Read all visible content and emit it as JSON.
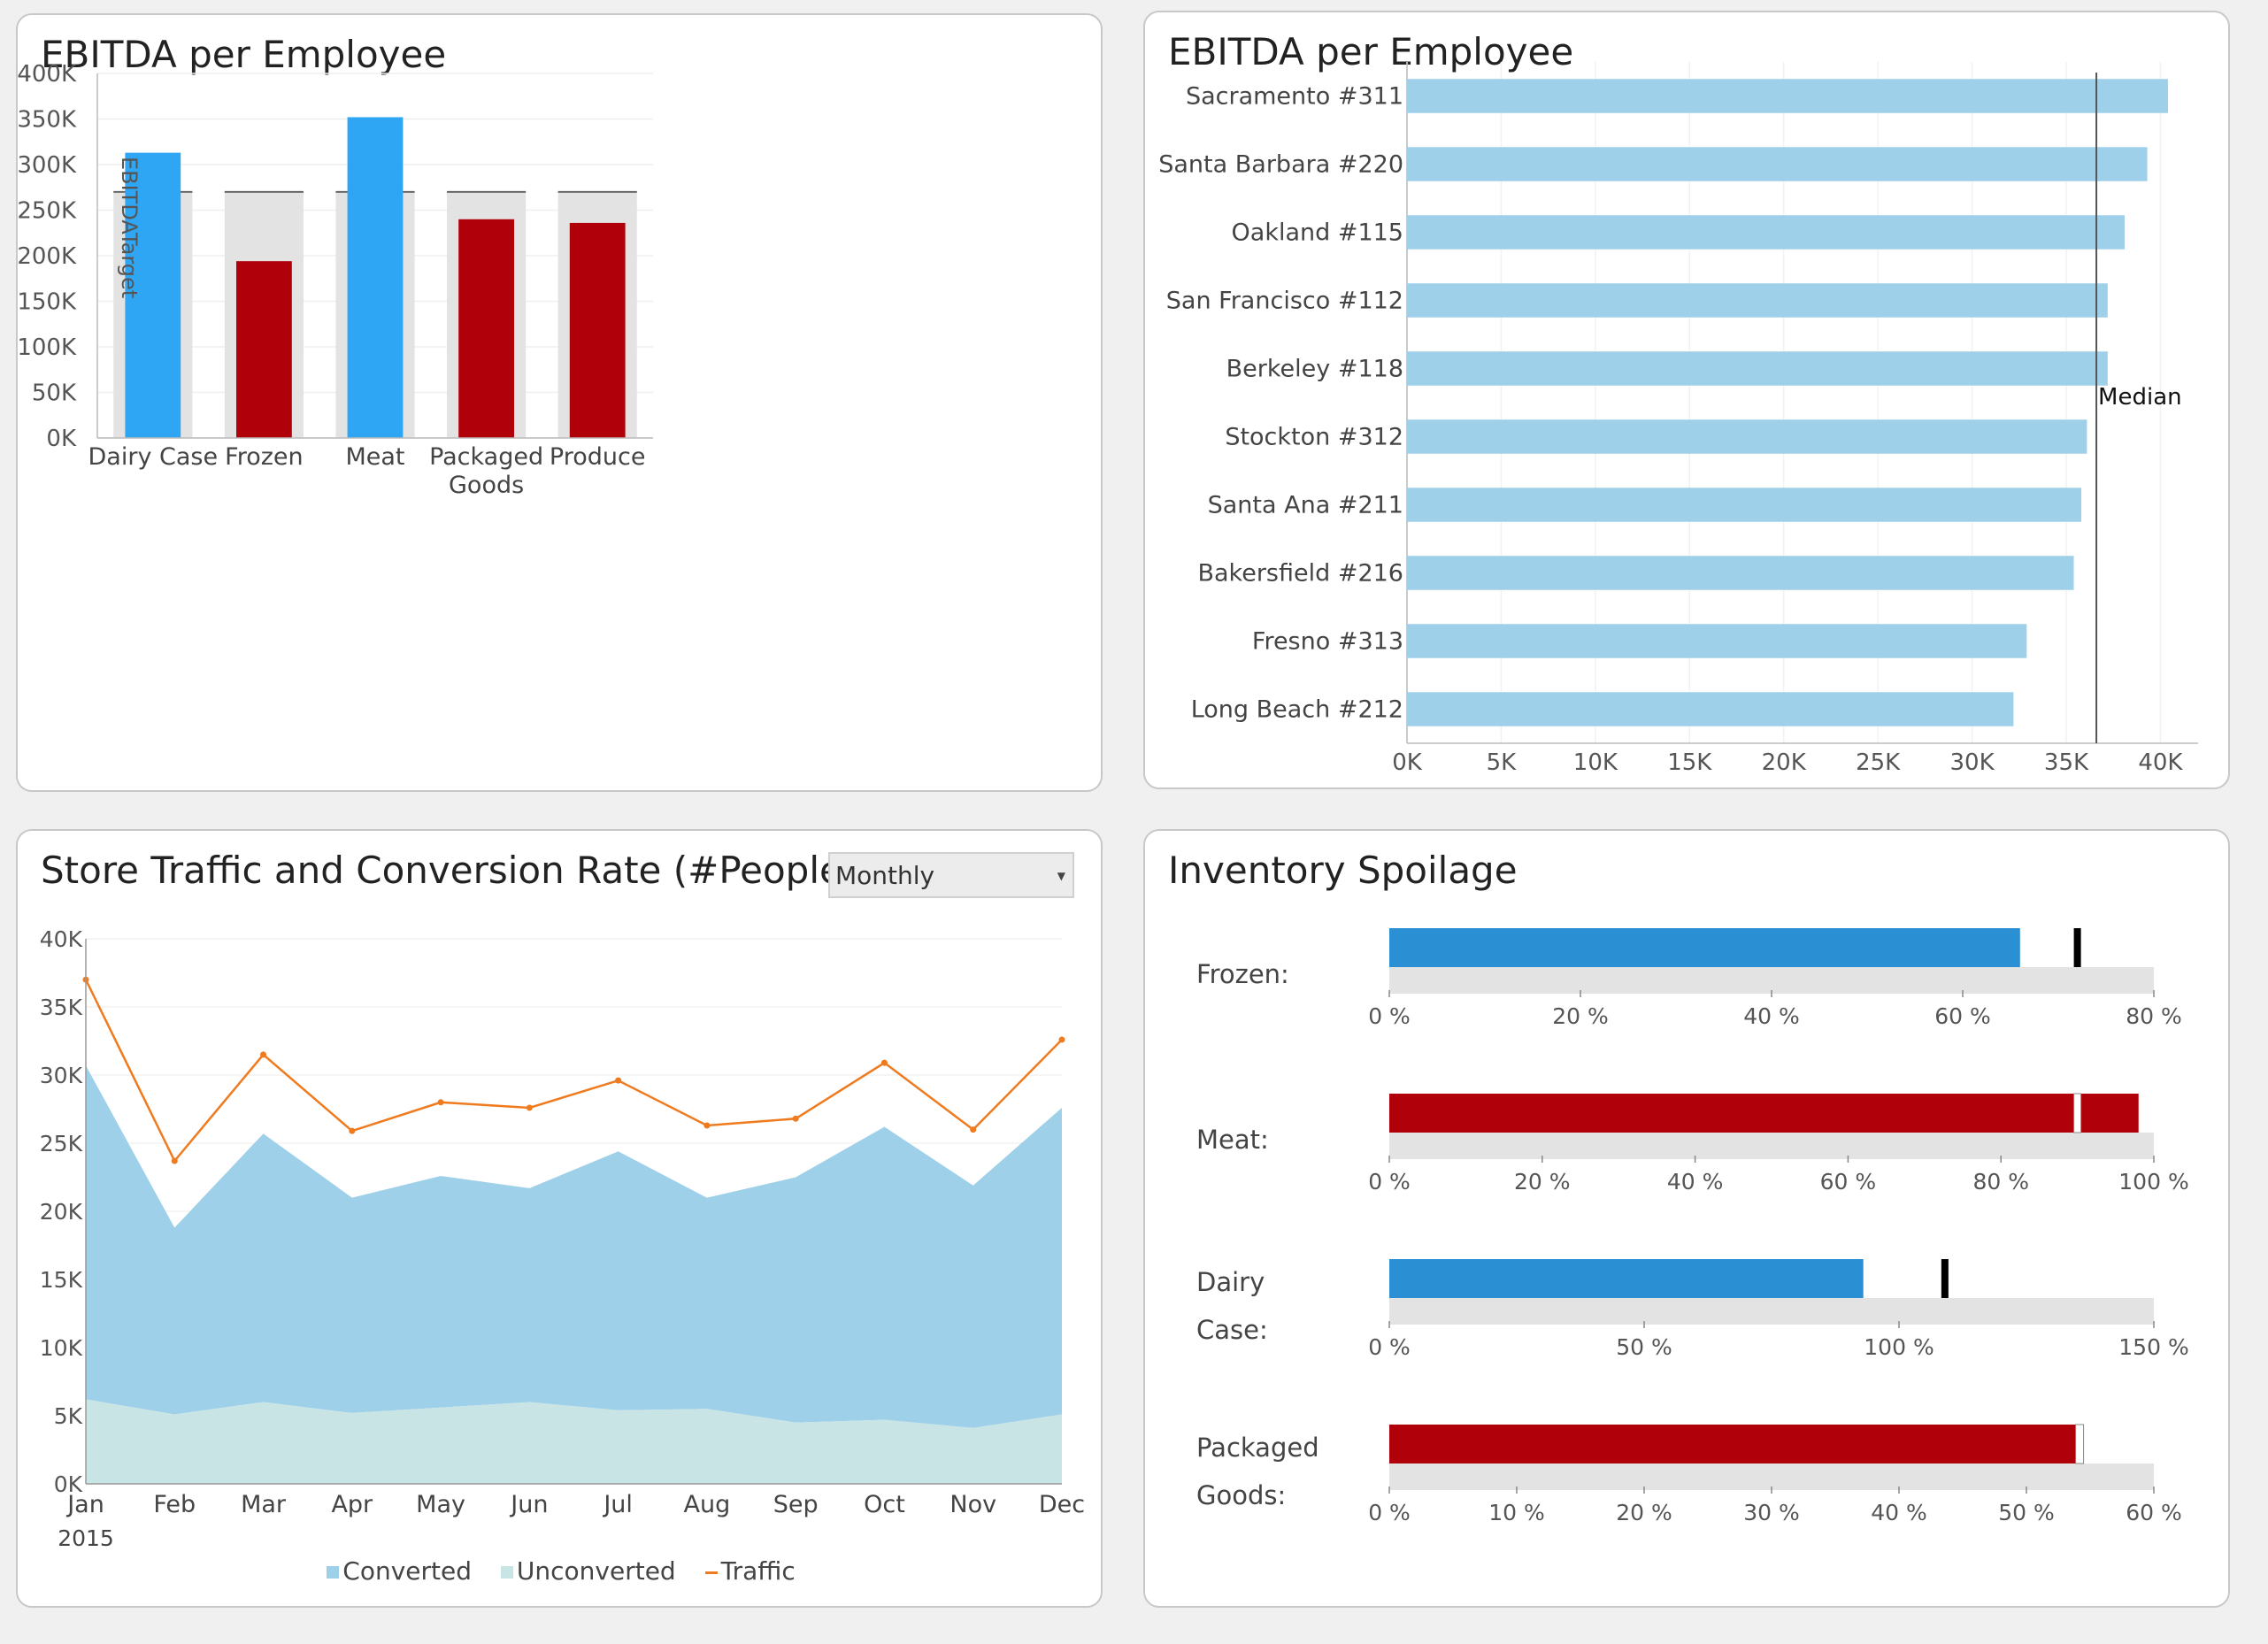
{
  "panels": {
    "ebitda_category": {
      "title": "EBITDA per Employee"
    },
    "ebitda_store": {
      "title": "EBITDA per Employee"
    },
    "traffic": {
      "title": "Store Traffic and Conversion Rate (#People)",
      "period_select": "Monthly"
    },
    "spoilage": {
      "title": "Inventory Spoilage"
    }
  },
  "colors": {
    "above_target": "#2ea6f3",
    "below_target": "#b0000a",
    "target_band": "#e3e3e3",
    "store_bar": "#9fd0ea",
    "converted": "#9fd0ea",
    "unconverted": "#c8e4e4",
    "traffic": "#f07a1e",
    "spoilage_good": "#2b8fd3",
    "spoilage_bad": "#b0000a"
  },
  "chart_data": [
    {
      "type": "bar",
      "title": "EBITDA per Employee",
      "categories": [
        "Dairy Case",
        "Frozen",
        "Meat",
        "Packaged Goods",
        "Produce"
      ],
      "values": [
        313000,
        194000,
        352000,
        240000,
        236000
      ],
      "target": 270000,
      "target_label": "EBITDATarget",
      "ylim": [
        0,
        400000
      ],
      "yticks": [
        "0K",
        "50K",
        "100K",
        "150K",
        "200K",
        "250K",
        "300K",
        "350K",
        "400K"
      ],
      "grid": true
    },
    {
      "type": "bar",
      "orientation": "horizontal",
      "title": "EBITDA per Employee",
      "categories": [
        "Sacramento #311",
        "Santa Barbara #220",
        "Oakland #115",
        "San Francisco #112",
        "Berkeley #118",
        "Stockton #312",
        "Santa Ana #211",
        "Bakersfield #216",
        "Fresno #313",
        "Long Beach #212"
      ],
      "values": [
        40400,
        39300,
        38100,
        37200,
        37200,
        36100,
        35800,
        35400,
        32900,
        32200
      ],
      "median": 36600,
      "median_label": "Median",
      "xlim": [
        0,
        42000
      ],
      "xticks": [
        "0K",
        "5K",
        "10K",
        "15K",
        "20K",
        "25K",
        "30K",
        "35K",
        "40K"
      ],
      "grid": true
    },
    {
      "type": "area",
      "title": "Store Traffic and Conversion Rate (#People)",
      "x": [
        "Jan",
        "Feb",
        "Mar",
        "Apr",
        "May",
        "Jun",
        "Jul",
        "Aug",
        "Sep",
        "Oct",
        "Nov",
        "Dec"
      ],
      "x_year_label": "2015",
      "series": [
        {
          "name": "Converted",
          "type": "area",
          "values": [
            24500,
            13700,
            19700,
            15800,
            17000,
            15700,
            19000,
            15500,
            18000,
            21500,
            17800,
            22500
          ]
        },
        {
          "name": "Unconverted",
          "type": "area",
          "values": [
            6200,
            5100,
            6000,
            5200,
            5600,
            6000,
            5400,
            5500,
            4500,
            4700,
            4100,
            5100
          ]
        },
        {
          "name": "Traffic",
          "type": "line",
          "values": [
            37000,
            23700,
            31500,
            25900,
            28000,
            27600,
            29600,
            26300,
            26800,
            30900,
            26000,
            32600
          ]
        }
      ],
      "ylim": [
        0,
        40000
      ],
      "yticks": [
        "0K",
        "5K",
        "10K",
        "15K",
        "20K",
        "25K",
        "30K",
        "35K",
        "40K"
      ],
      "legend": "bottom"
    },
    {
      "type": "bullet",
      "title": "Inventory Spoilage",
      "items": [
        {
          "label": "Frozen:",
          "value": 66,
          "target": 72,
          "max": 80,
          "ticks": [
            "0 %",
            "20 %",
            "40 %",
            "60 %",
            "80 %"
          ],
          "status": "good"
        },
        {
          "label": "Meat:",
          "value": 98,
          "target": 90,
          "max": 100,
          "ticks": [
            "0 %",
            "20 %",
            "40 %",
            "60 %",
            "80 %",
            "100 %"
          ],
          "status": "bad"
        },
        {
          "label": "Dairy Case:",
          "value": 93,
          "target": 109,
          "max": 150,
          "ticks": [
            "0 %",
            "50 %",
            "100 %",
            "150 %"
          ],
          "status": "good"
        },
        {
          "label": "Packaged Goods:",
          "value": 54,
          "target": 54,
          "max": 60,
          "ticks": [
            "0 %",
            "10 %",
            "20 %",
            "30 %",
            "40 %",
            "50 %",
            "60 %"
          ],
          "status": "bad"
        }
      ]
    }
  ]
}
